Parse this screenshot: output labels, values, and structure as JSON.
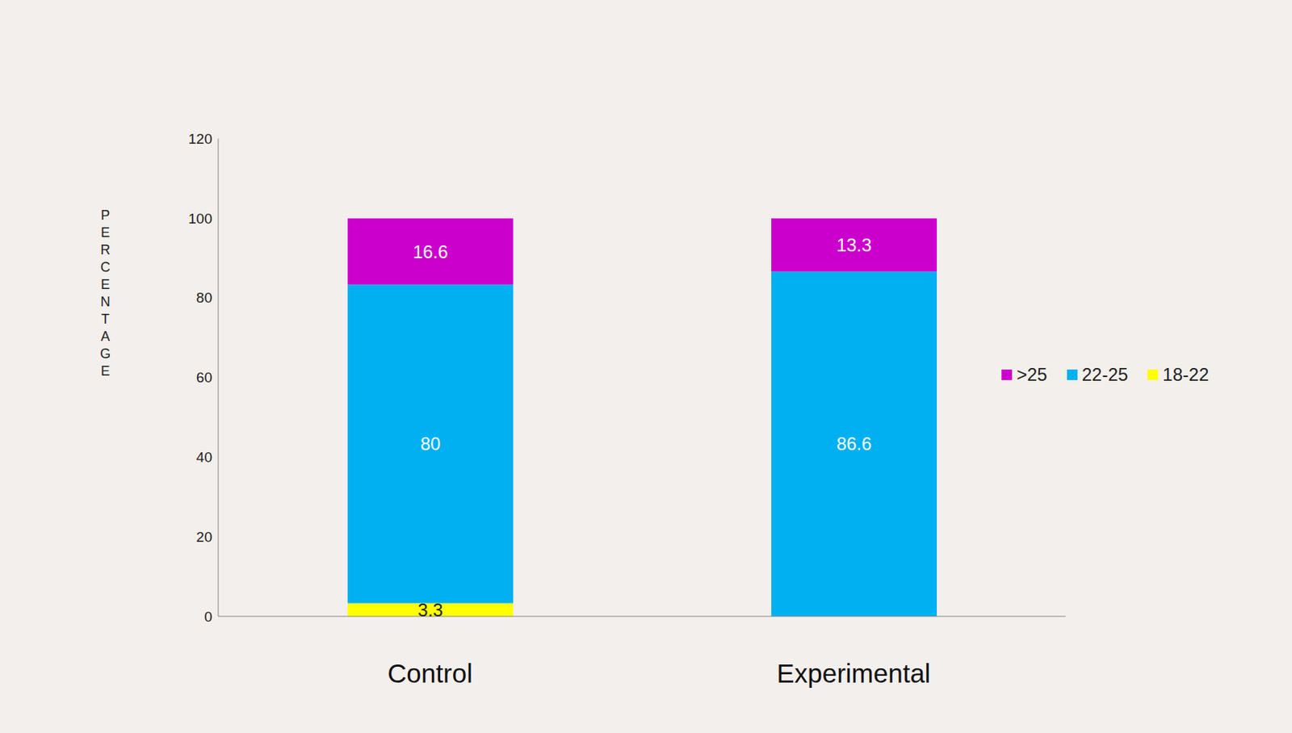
{
  "chart_data": {
    "type": "bar",
    "y_label": "PERCENTAGE",
    "categories": [
      "Control",
      "Experimental"
    ],
    "series": [
      {
        "name": ">25",
        "color": "#cc00cc",
        "values": [
          16.6,
          13.3
        ]
      },
      {
        "name": "22-25",
        "color": "#00b0f0",
        "values": [
          80,
          86.6
        ]
      },
      {
        "name": "18-22",
        "color": "#ffff00",
        "values": [
          3.3,
          0
        ]
      }
    ],
    "ylim": [
      0,
      120
    ],
    "yticks": [
      0,
      20,
      40,
      60,
      80,
      100,
      120
    ],
    "stacked": true,
    "data_labels": true,
    "legend": "right",
    "grid": false
  }
}
